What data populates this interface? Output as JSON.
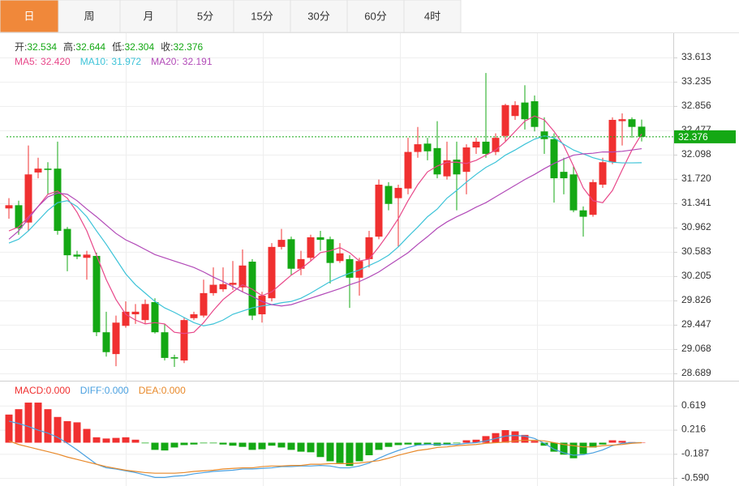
{
  "tabs": [
    "日",
    "周",
    "月",
    "5分",
    "15分",
    "30分",
    "60分",
    "4时"
  ],
  "active_tab": 0,
  "chart_data": [
    {
      "type": "candlestick",
      "readout": [
        {
          "label": "开:",
          "value": "32.534"
        },
        {
          "label": "高:",
          "value": "32.644"
        },
        {
          "label": "低:",
          "value": "32.304"
        },
        {
          "label": "收:",
          "value": "32.376"
        }
      ],
      "readout_color": "#14a814",
      "up_color": "#f03030",
      "down_color": "#14a814",
      "open": [
        31.26,
        31.31,
        31.04,
        31.82,
        31.88,
        31.88,
        30.94,
        30.54,
        30.49,
        30.52,
        29.33,
        28.99,
        29.43,
        29.61,
        29.52,
        29.8,
        29.33,
        28.94,
        28.89,
        29.55,
        29.59,
        29.94,
        30.0,
        30.07,
        30.03,
        30.43,
        29.61,
        29.86,
        30.66,
        30.78,
        30.32,
        30.49,
        30.81,
        30.78,
        30.44,
        30.47,
        30.18,
        30.47,
        30.82,
        31.61,
        31.42,
        31.57,
        32.14,
        32.27,
        32.2,
        31.76,
        32.02,
        31.83,
        32.21,
        32.3,
        32.14,
        32.39,
        32.7,
        32.91,
        32.93,
        32.46,
        32.34,
        31.83,
        31.79,
        31.23,
        31.16,
        31.63,
        31.98,
        32.62,
        32.65,
        32.534
      ],
      "high": [
        31.42,
        31.38,
        32.24,
        32.05,
        31.98,
        32.3,
        30.97,
        30.6,
        30.6,
        30.57,
        29.65,
        29.59,
        29.81,
        29.77,
        29.84,
        29.86,
        29.46,
        28.98,
        29.56,
        29.65,
        30.15,
        30.34,
        30.34,
        30.44,
        30.62,
        30.47,
        29.96,
        30.72,
        30.94,
        30.82,
        30.6,
        30.85,
        30.91,
        30.82,
        30.72,
        30.53,
        30.49,
        30.91,
        31.71,
        31.67,
        31.63,
        32.36,
        32.53,
        32.36,
        32.62,
        32.3,
        32.3,
        32.26,
        32.36,
        33.37,
        32.43,
        32.89,
        32.93,
        33.18,
        33.02,
        32.68,
        32.43,
        32.05,
        31.92,
        31.29,
        31.71,
        32.05,
        32.68,
        32.74,
        32.68,
        32.644
      ],
      "low": [
        31.1,
        30.85,
        30.91,
        31.73,
        31.48,
        30.85,
        30.28,
        30.47,
        30.15,
        29.27,
        28.95,
        28.8,
        29.4,
        29.46,
        29.46,
        29.31,
        28.89,
        28.79,
        28.85,
        29.52,
        29.56,
        29.9,
        29.96,
        29.99,
        29.96,
        29.52,
        29.48,
        29.81,
        30.62,
        30.22,
        30.22,
        30.44,
        30.6,
        30.09,
        30.41,
        29.71,
        29.9,
        30.34,
        30.78,
        31.23,
        30.66,
        31.48,
        32.05,
        32.01,
        31.73,
        31.71,
        31.23,
        31.48,
        32.11,
        32.05,
        32.09,
        32.3,
        32.64,
        32.49,
        32.46,
        32.11,
        31.35,
        31.48,
        31.2,
        30.82,
        31.13,
        31.58,
        31.95,
        32.24,
        32.36,
        32.304
      ],
      "close": [
        31.31,
        30.95,
        31.79,
        31.88,
        31.86,
        30.91,
        30.53,
        30.51,
        30.54,
        29.33,
        29.02,
        29.48,
        29.65,
        29.65,
        29.77,
        29.33,
        28.93,
        28.92,
        29.52,
        29.61,
        29.94,
        30.07,
        30.08,
        30.1,
        30.37,
        29.59,
        29.9,
        30.66,
        30.77,
        30.32,
        30.47,
        30.81,
        30.77,
        30.41,
        30.56,
        30.18,
        30.44,
        30.81,
        31.63,
        31.33,
        31.58,
        32.14,
        32.26,
        32.15,
        31.79,
        32.01,
        31.79,
        32.21,
        32.3,
        32.11,
        32.36,
        32.87,
        32.87,
        32.65,
        32.53,
        32.34,
        31.73,
        31.73,
        31.23,
        31.13,
        31.67,
        31.98,
        32.64,
        32.65,
        32.53,
        32.376
      ],
      "series": [
        {
          "name": "MA5:",
          "value_label": "32.420",
          "color": "#e8488a",
          "values": [
            30.91,
            30.97,
            31.13,
            31.29,
            31.48,
            31.53,
            31.42,
            31.2,
            30.91,
            30.53,
            30.15,
            29.84,
            29.61,
            29.52,
            29.46,
            29.48,
            29.46,
            29.33,
            29.31,
            29.33,
            29.48,
            29.67,
            29.84,
            29.96,
            30.07,
            30.0,
            29.9,
            29.96,
            30.09,
            30.22,
            30.32,
            30.44,
            30.57,
            30.6,
            30.65,
            30.57,
            30.44,
            30.47,
            30.66,
            30.87,
            31.1,
            31.38,
            31.63,
            31.83,
            31.92,
            31.98,
            31.98,
            31.96,
            32.01,
            32.09,
            32.17,
            32.3,
            32.46,
            32.62,
            32.7,
            32.64,
            32.46,
            32.24,
            31.92,
            31.58,
            31.38,
            31.35,
            31.54,
            31.86,
            32.17,
            32.42
          ]
        },
        {
          "name": "MA10:",
          "value_label": "31.972",
          "color": "#3cc3d8",
          "values": [
            30.72,
            30.78,
            30.91,
            31.07,
            31.23,
            31.35,
            31.38,
            31.29,
            31.13,
            30.91,
            30.7,
            30.47,
            30.24,
            30.07,
            29.94,
            29.81,
            29.71,
            29.64,
            29.56,
            29.48,
            29.43,
            29.46,
            29.52,
            29.61,
            29.66,
            29.71,
            29.74,
            29.76,
            29.79,
            29.81,
            29.86,
            29.94,
            30.03,
            30.12,
            30.19,
            30.25,
            30.3,
            30.37,
            30.44,
            30.53,
            30.66,
            30.82,
            30.97,
            31.13,
            31.25,
            31.42,
            31.54,
            31.67,
            31.79,
            31.9,
            31.98,
            32.09,
            32.17,
            32.26,
            32.34,
            32.39,
            32.36,
            32.26,
            32.17,
            32.11,
            32.05,
            32.01,
            31.98,
            31.97,
            31.97,
            31.972
          ]
        },
        {
          "name": "MA20:",
          "value_label": "32.191",
          "color": "#b24ab8",
          "values": [
            30.78,
            30.91,
            31.1,
            31.29,
            31.44,
            31.5,
            31.48,
            31.38,
            31.25,
            31.13,
            31.0,
            30.87,
            30.77,
            30.7,
            30.62,
            30.54,
            30.49,
            30.44,
            30.39,
            30.34,
            30.27,
            30.19,
            30.12,
            30.04,
            29.96,
            29.89,
            29.81,
            29.76,
            29.74,
            29.76,
            29.81,
            29.86,
            29.91,
            29.96,
            30.01,
            30.07,
            30.12,
            30.19,
            30.27,
            30.37,
            30.47,
            30.57,
            30.7,
            30.82,
            30.95,
            31.05,
            31.13,
            31.2,
            31.28,
            31.35,
            31.44,
            31.53,
            31.62,
            31.71,
            31.79,
            31.88,
            31.96,
            32.03,
            32.09,
            32.11,
            32.12,
            32.14,
            32.14,
            32.15,
            32.17,
            32.191
          ]
        }
      ],
      "last_price": 32.376,
      "ylim": [
        28.575,
        33.94
      ],
      "yticks": [
        33.613,
        33.235,
        32.856,
        32.477,
        32.098,
        {
          "value": 31.72,
          "label": "31.720"
        },
        31.341,
        30.962,
        30.583,
        30.205,
        29.826,
        29.447,
        29.068,
        28.689
      ],
      "grid": true
    },
    {
      "type": "macd",
      "readout": [
        {
          "label": "MACD:",
          "value": "0.000",
          "color": "#f03030"
        },
        {
          "label": "DIFF:",
          "value": "0.000",
          "color": "#4aa0e0"
        },
        {
          "label": "DEA:",
          "value": "0.000",
          "color": "#e8892a"
        }
      ],
      "up_color": "#f03030",
      "down_color": "#14a814",
      "values": [
        0.47,
        0.56,
        0.67,
        0.67,
        0.56,
        0.43,
        0.36,
        0.34,
        0.23,
        0.09,
        0.07,
        0.08,
        0.09,
        0.05,
        -0.01,
        -0.12,
        -0.13,
        -0.08,
        -0.04,
        -0.03,
        -0.01,
        -0.01,
        -0.03,
        -0.05,
        -0.07,
        -0.12,
        -0.11,
        -0.05,
        -0.08,
        -0.12,
        -0.15,
        -0.16,
        -0.24,
        -0.31,
        -0.34,
        -0.39,
        -0.31,
        -0.21,
        -0.12,
        -0.07,
        -0.04,
        -0.03,
        -0.04,
        -0.03,
        -0.05,
        -0.04,
        -0.01,
        0.04,
        0.05,
        0.11,
        0.16,
        0.21,
        0.19,
        0.13,
        0.03,
        -0.05,
        -0.15,
        -0.2,
        -0.26,
        -0.19,
        -0.08,
        -0.03,
        0.04,
        0.03,
        0.01,
        0
      ],
      "series": [
        {
          "name": "DIFF",
          "color": "#4aa0e0",
          "values": [
            0.36,
            0.32,
            0.27,
            0.21,
            0.16,
            0.09,
            -0.01,
            -0.12,
            -0.24,
            -0.36,
            -0.42,
            -0.44,
            -0.47,
            -0.5,
            -0.54,
            -0.58,
            -0.58,
            -0.56,
            -0.55,
            -0.52,
            -0.5,
            -0.48,
            -0.47,
            -0.46,
            -0.44,
            -0.44,
            -0.43,
            -0.42,
            -0.4,
            -0.4,
            -0.39,
            -0.39,
            -0.38,
            -0.39,
            -0.42,
            -0.42,
            -0.39,
            -0.34,
            -0.26,
            -0.19,
            -0.13,
            -0.08,
            -0.04,
            -0.03,
            -0.03,
            -0.03,
            -0.03,
            -0.01,
            0,
            0.03,
            0.07,
            0.11,
            0.12,
            0.11,
            0.07,
            -0.01,
            -0.11,
            -0.17,
            -0.21,
            -0.2,
            -0.17,
            -0.12,
            -0.05,
            -0.01,
            0,
            0
          ]
        },
        {
          "name": "DEA",
          "color": "#e8892a",
          "values": [
            0.03,
            -0.03,
            -0.07,
            -0.11,
            -0.15,
            -0.19,
            -0.24,
            -0.28,
            -0.32,
            -0.36,
            -0.4,
            -0.43,
            -0.46,
            -0.48,
            -0.5,
            -0.51,
            -0.51,
            -0.51,
            -0.5,
            -0.48,
            -0.47,
            -0.46,
            -0.44,
            -0.43,
            -0.42,
            -0.42,
            -0.4,
            -0.39,
            -0.39,
            -0.38,
            -0.38,
            -0.36,
            -0.36,
            -0.35,
            -0.35,
            -0.35,
            -0.34,
            -0.32,
            -0.3,
            -0.26,
            -0.21,
            -0.17,
            -0.13,
            -0.11,
            -0.08,
            -0.07,
            -0.05,
            -0.04,
            -0.03,
            -0.01,
            0,
            0.01,
            0.03,
            0.04,
            0.04,
            0.03,
            0,
            -0.03,
            -0.05,
            -0.07,
            -0.07,
            -0.05,
            -0.04,
            -0.03,
            -0.01,
            0
          ]
        }
      ],
      "ylim": [
        -0.724,
        1.009
      ],
      "yticks": [
        0.619,
        0.216,
        -0.187,
        {
          "value": -0.59,
          "label": "-0.590"
        }
      ],
      "grid": true
    }
  ]
}
